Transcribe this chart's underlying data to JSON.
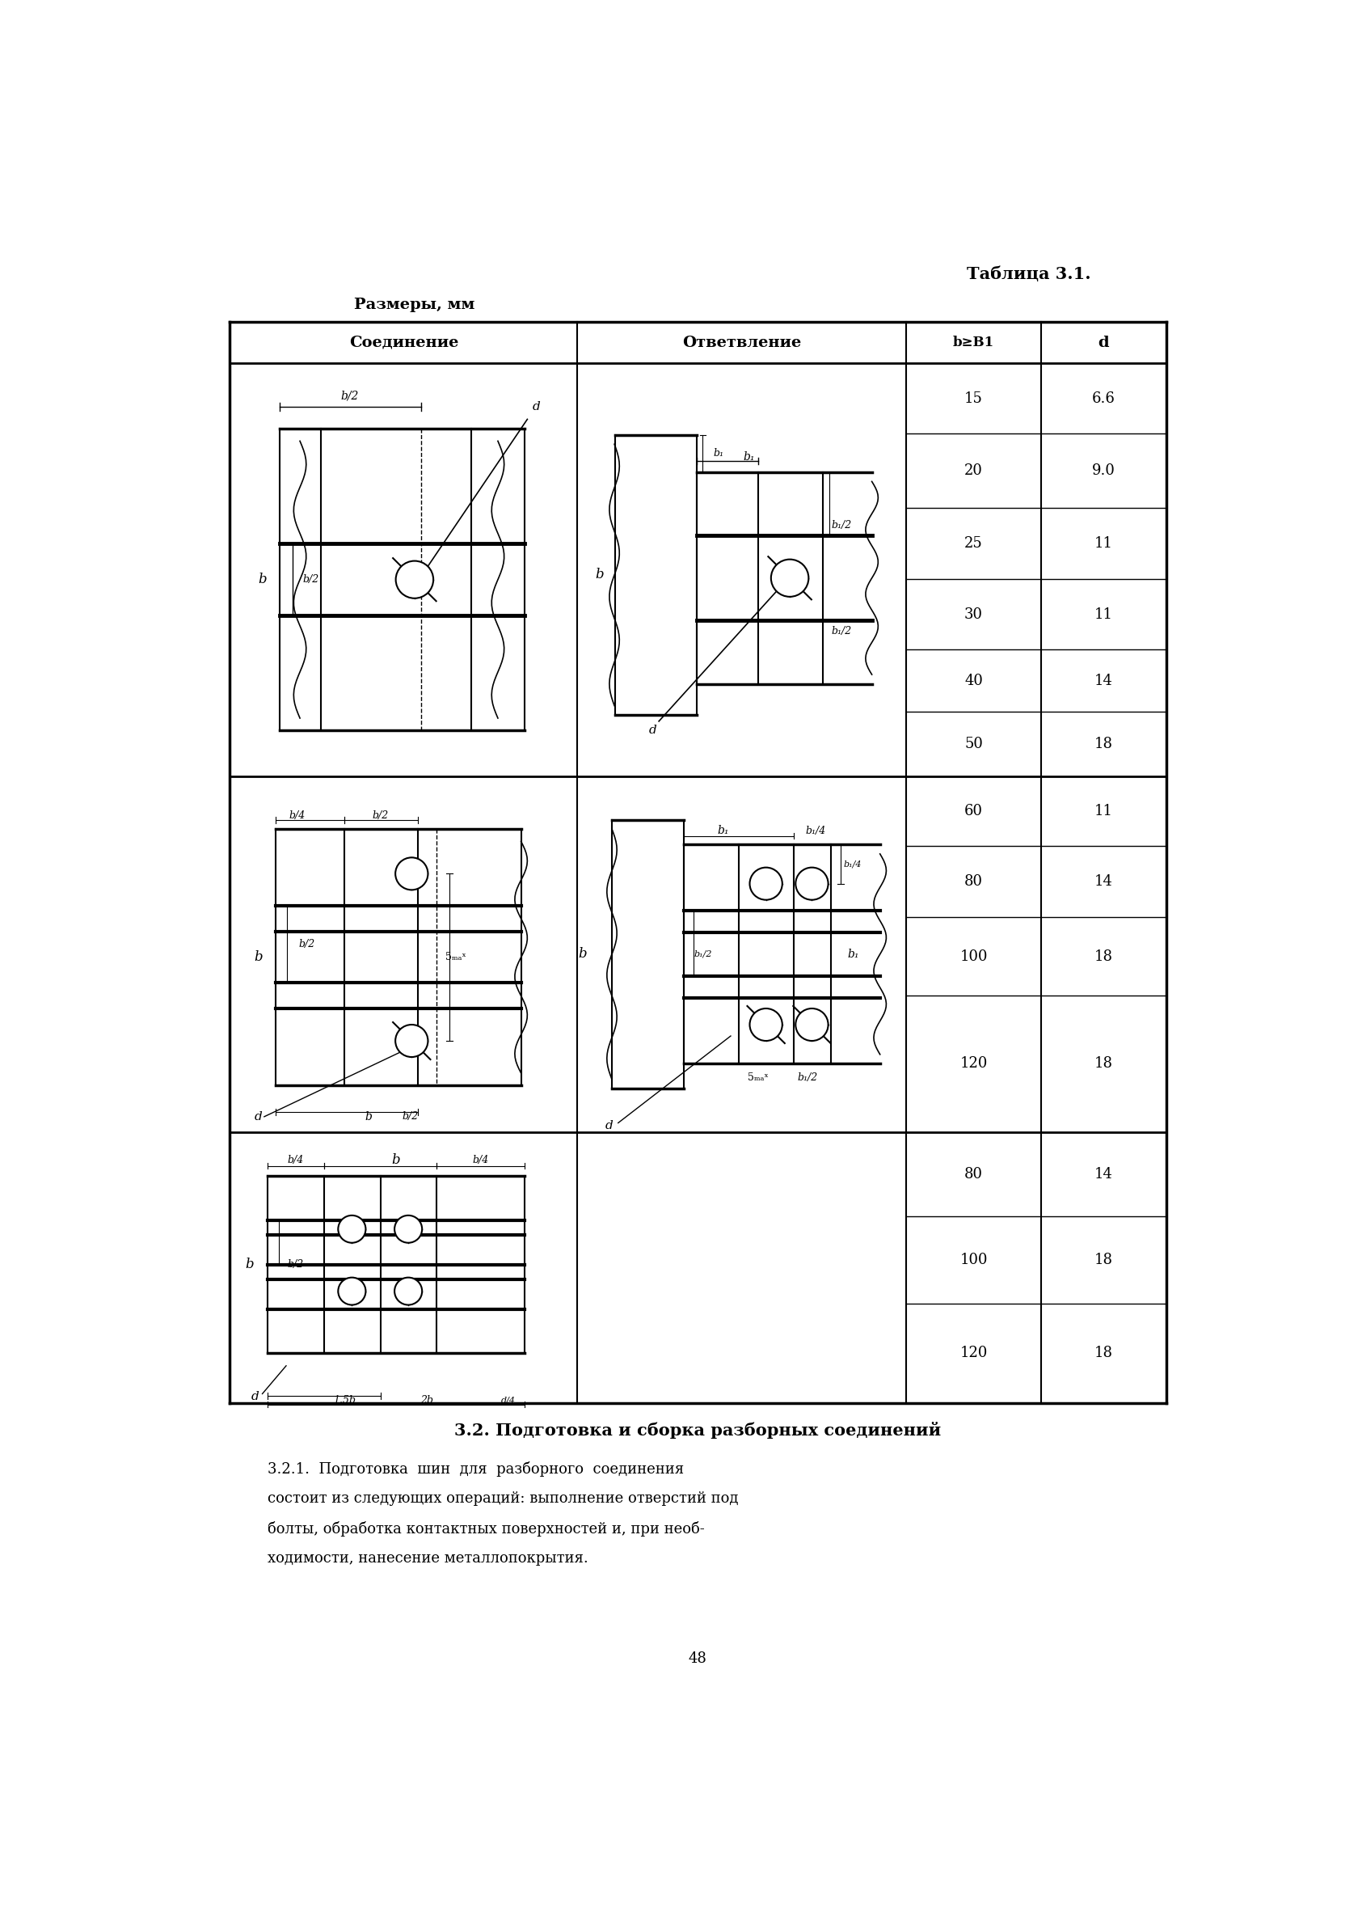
{
  "title": "Таблица 3.1.",
  "subtitle": "Размеры, мм",
  "col_headers": [
    "Соединение",
    "Ответвление",
    "b≥B1",
    "d"
  ],
  "rows_data": [
    {
      "b": 15,
      "d": "6.6"
    },
    {
      "b": 20,
      "d": "9.0"
    },
    {
      "b": 25,
      "d": "11"
    },
    {
      "b": 30,
      "d": "11"
    },
    {
      "b": 40,
      "d": "14"
    },
    {
      "b": 50,
      "d": "18"
    }
  ],
  "rows_data2": [
    {
      "b": 60,
      "d": "11"
    },
    {
      "b": 80,
      "d": "14"
    },
    {
      "b": 100,
      "d": "18"
    },
    {
      "b": 120,
      "d": "18"
    }
  ],
  "rows_data3": [
    {
      "b": 80,
      "d": "14"
    },
    {
      "b": 100,
      "d": "18"
    },
    {
      "b": 120,
      "d": "18"
    }
  ],
  "section_heading": "3.2. Подготовка и сборка разборных соединений",
  "para1": "3.2.1.  Подготовка  шин  для  разборного  соединения",
  "para2": "состоит из следующих операций: выполнение отверстий под",
  "para3": "болты, обработка контактных поверхностей и, при необ-",
  "para4": "ходимости, нанесение металлопокрытия.",
  "page_number": "48",
  "bg_color": "#ffffff"
}
